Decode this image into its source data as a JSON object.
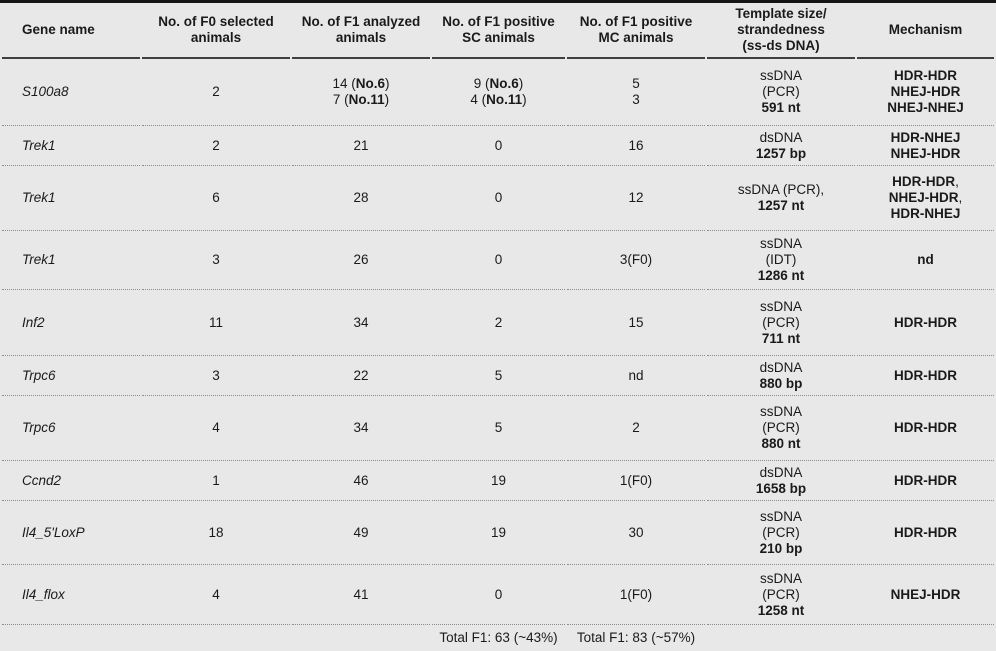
{
  "page": {
    "background_color": "#e8e8e8",
    "text_color": "#1a1a1a",
    "top_bar_color": "#161616",
    "header_rule_color": "#3f3f3f",
    "dotted_rule_color": "#8c8c8c"
  },
  "table": {
    "columns": [
      {
        "key": "gene",
        "label": "Gene name"
      },
      {
        "key": "f0",
        "label": "No. of F0 selected\nanimals"
      },
      {
        "key": "f1",
        "label": "No. of F1 analyzed\nanimals"
      },
      {
        "key": "sc",
        "label": "No. of F1 positive\nSC animals"
      },
      {
        "key": "mc",
        "label": "No. of F1 positive\nMC animals"
      },
      {
        "key": "template",
        "label": "Template size/\nstrandedness\n(ss-ds DNA)"
      },
      {
        "key": "mechanism",
        "label": "Mechanism"
      }
    ],
    "rows": [
      {
        "gene": "S100a8",
        "f0": "2",
        "f1": "14 (**No.6**)\n7 (**No.11**)",
        "sc": "9 (**No.6**)\n4 (**No.11**)",
        "mc": "5\n3",
        "template": "ssDNA\n(PCR)\n**591 nt**",
        "mechanism": "**HDR-HDR**\n**NHEJ-HDR**\n**NHEJ-NHEJ**"
      },
      {
        "gene": "Trek1",
        "f0": "2",
        "f1": "21",
        "sc": "0",
        "mc": "16",
        "template": "dsDNA\n**1257 bp**",
        "mechanism": "**HDR-NHEJ**\n**NHEJ-HDR**"
      },
      {
        "gene": "Trek1",
        "f0": "6",
        "f1": "28",
        "sc": "0",
        "mc": "12",
        "template": "ssDNA (PCR),\n**1257 nt**",
        "mechanism": "**HDR-HDR**,\n**NHEJ-HDR**,\n**HDR-NHEJ**"
      },
      {
        "gene": "Trek1",
        "f0": "3",
        "f1": "26",
        "sc": "0",
        "mc": "3(F0)",
        "template": "ssDNA\n(IDT)\n**1286 nt**",
        "mechanism": "**nd**"
      },
      {
        "gene": "Inf2",
        "f0": "11",
        "f1": "34",
        "sc": "2",
        "mc": "15",
        "template": "ssDNA\n(PCR)\n**711 nt**",
        "mechanism": "**HDR-HDR**"
      },
      {
        "gene": "Trpc6",
        "f0": "3",
        "f1": "22",
        "sc": "5",
        "mc": "nd",
        "template": "dsDNA\n**880 bp**",
        "mechanism": "**HDR-HDR**"
      },
      {
        "gene": "Trpc6",
        "f0": "4",
        "f1": "34",
        "sc": "5",
        "mc": "2",
        "template": "ssDNA\n(PCR)\n**880 nt**",
        "mechanism": "**HDR-HDR**"
      },
      {
        "gene": "Ccnd2",
        "f0": "1",
        "f1": "46",
        "sc": "19",
        "mc": "1(F0)",
        "template": "dsDNA\n**1658 bp**",
        "mechanism": "**HDR-HDR**"
      },
      {
        "gene": "Il4_5'LoxP",
        "f0": "18",
        "f1": "49",
        "sc": "19",
        "mc": "30",
        "template": "ssDNA\n(PCR)\n**210 bp**",
        "mechanism": "**HDR-HDR**"
      },
      {
        "gene": "Il4_flox",
        "f0": "4",
        "f1": "41",
        "sc": "0",
        "mc": "1(F0)",
        "template": "ssDNA\n(PCR)\n**1258 nt**",
        "mechanism": "**NHEJ-HDR**"
      }
    ],
    "footer": {
      "sc_total": "Total F1: 63 (~43%)",
      "mc_total": "Total F1: 83 (~57%)"
    }
  }
}
